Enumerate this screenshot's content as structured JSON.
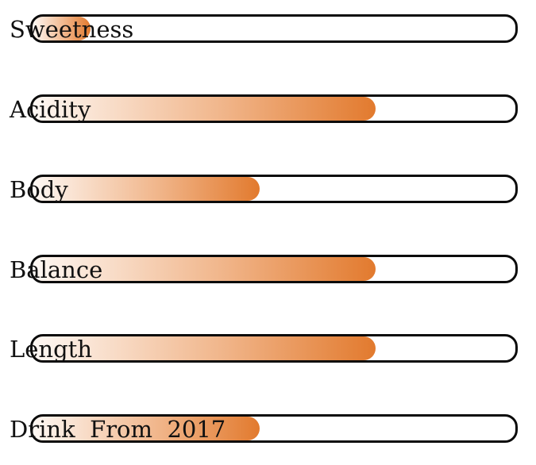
{
  "accent_color": "#e27a2e",
  "meters": [
    {
      "label": "Sweetness",
      "level_percent": 12
    },
    {
      "label": "Acidity",
      "level_percent": 71
    },
    {
      "label": "Body",
      "level_percent": 47
    },
    {
      "label": "Balance",
      "level_percent": 71
    },
    {
      "label": "Length",
      "level_percent": 71
    },
    {
      "label": "Drink  From  2017",
      "level_percent": 47
    }
  ]
}
